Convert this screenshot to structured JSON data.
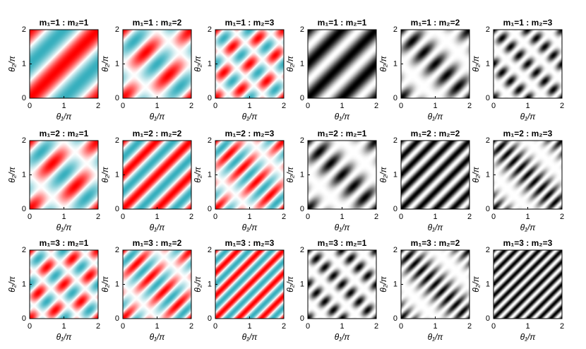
{
  "chart_data": [
    {
      "type": "heatmap",
      "title": "m₁=1 : m₂=1",
      "m1": 1,
      "m2": 1,
      "colormap": "red-cyan",
      "xlabel": "θ₁/π",
      "ylabel": "θ₂/π",
      "xlim": [
        0,
        2
      ],
      "ylim": [
        0,
        2
      ],
      "xticks": [
        0,
        1,
        2
      ],
      "yticks": [
        0,
        1,
        2
      ]
    },
    {
      "type": "heatmap",
      "title": "m₁=1 : m₂=2",
      "m1": 1,
      "m2": 2,
      "colormap": "red-cyan",
      "xlabel": "θ₁/π",
      "ylabel": "θ₂/π",
      "xlim": [
        0,
        2
      ],
      "ylim": [
        0,
        2
      ],
      "xticks": [
        0,
        1,
        2
      ],
      "yticks": [
        0,
        1,
        2
      ]
    },
    {
      "type": "heatmap",
      "title": "m₁=1 : m₂=3",
      "m1": 1,
      "m2": 3,
      "colormap": "red-cyan",
      "xlabel": "θ₁/π",
      "ylabel": "θ₂/π",
      "xlim": [
        0,
        2
      ],
      "ylim": [
        0,
        2
      ],
      "xticks": [
        0,
        1,
        2
      ],
      "yticks": [
        0,
        1,
        2
      ]
    },
    {
      "type": "heatmap",
      "title": "m₁=1 : m₂=1",
      "m1": 1,
      "m2": 1,
      "colormap": "gray",
      "xlabel": "θ₁/π",
      "ylabel": "θ₂/π",
      "xlim": [
        0,
        2
      ],
      "ylim": [
        0,
        2
      ],
      "xticks": [
        0,
        1,
        2
      ],
      "yticks": [
        0,
        1,
        2
      ]
    },
    {
      "type": "heatmap",
      "title": "m₁=1 : m₂=2",
      "m1": 1,
      "m2": 2,
      "colormap": "gray",
      "xlabel": "θ₁/π",
      "ylabel": "θ₂/π",
      "xlim": [
        0,
        2
      ],
      "ylim": [
        0,
        2
      ],
      "xticks": [
        0,
        1,
        2
      ],
      "yticks": [
        0,
        1,
        2
      ]
    },
    {
      "type": "heatmap",
      "title": "m₁=1 : m₂=3",
      "m1": 1,
      "m2": 3,
      "colormap": "gray",
      "xlabel": "θ₁/π",
      "ylabel": "θ₂/π",
      "xlim": [
        0,
        2
      ],
      "ylim": [
        0,
        2
      ],
      "xticks": [
        0,
        1,
        2
      ],
      "yticks": [
        0,
        1,
        2
      ]
    },
    {
      "type": "heatmap",
      "title": "m₁=2 : m₂=1",
      "m1": 2,
      "m2": 1,
      "colormap": "red-cyan",
      "xlabel": "θ₁/π",
      "ylabel": "θ₂/π",
      "xlim": [
        0,
        2
      ],
      "ylim": [
        0,
        2
      ],
      "xticks": [
        0,
        1,
        2
      ],
      "yticks": [
        0,
        1,
        2
      ]
    },
    {
      "type": "heatmap",
      "title": "m₁=2 : m₂=2",
      "m1": 2,
      "m2": 2,
      "colormap": "red-cyan",
      "xlabel": "θ₁/π",
      "ylabel": "θ₂/π",
      "xlim": [
        0,
        2
      ],
      "ylim": [
        0,
        2
      ],
      "xticks": [
        0,
        1,
        2
      ],
      "yticks": [
        0,
        1,
        2
      ]
    },
    {
      "type": "heatmap",
      "title": "m₁=2 : m₂=3",
      "m1": 2,
      "m2": 3,
      "colormap": "red-cyan",
      "xlabel": "θ₁/π",
      "ylabel": "θ₂/π",
      "xlim": [
        0,
        2
      ],
      "ylim": [
        0,
        2
      ],
      "xticks": [
        0,
        1,
        2
      ],
      "yticks": [
        0,
        1,
        2
      ]
    },
    {
      "type": "heatmap",
      "title": "m₁=2 : m₂=1",
      "m1": 2,
      "m2": 1,
      "colormap": "gray",
      "xlabel": "θ₁/π",
      "ylabel": "θ₂/π",
      "xlim": [
        0,
        2
      ],
      "ylim": [
        0,
        2
      ],
      "xticks": [
        0,
        1,
        2
      ],
      "yticks": [
        0,
        1,
        2
      ]
    },
    {
      "type": "heatmap",
      "title": "m₁=2 : m₂=2",
      "m1": 2,
      "m2": 2,
      "colormap": "gray",
      "xlabel": "θ₁/π",
      "ylabel": "θ₂/π",
      "xlim": [
        0,
        2
      ],
      "ylim": [
        0,
        2
      ],
      "xticks": [
        0,
        1,
        2
      ],
      "yticks": [
        0,
        1,
        2
      ]
    },
    {
      "type": "heatmap",
      "title": "m₁=2 : m₂=3",
      "m1": 2,
      "m2": 3,
      "colormap": "gray",
      "xlabel": "θ₁/π",
      "ylabel": "θ₂/π",
      "xlim": [
        0,
        2
      ],
      "ylim": [
        0,
        2
      ],
      "xticks": [
        0,
        1,
        2
      ],
      "yticks": [
        0,
        1,
        2
      ]
    },
    {
      "type": "heatmap",
      "title": "m₁=3 : m₂=1",
      "m1": 3,
      "m2": 1,
      "colormap": "red-cyan",
      "xlabel": "θ₁/π",
      "ylabel": "θ₂/π",
      "xlim": [
        0,
        2
      ],
      "ylim": [
        0,
        2
      ],
      "xticks": [
        0,
        1,
        2
      ],
      "yticks": [
        0,
        1,
        2
      ]
    },
    {
      "type": "heatmap",
      "title": "m₁=3 : m₂=2",
      "m1": 3,
      "m2": 2,
      "colormap": "red-cyan",
      "xlabel": "θ₁/π",
      "ylabel": "θ₂/π",
      "xlim": [
        0,
        2
      ],
      "ylim": [
        0,
        2
      ],
      "xticks": [
        0,
        1,
        2
      ],
      "yticks": [
        0,
        1,
        2
      ]
    },
    {
      "type": "heatmap",
      "title": "m₁=3 : m₂=3",
      "m1": 3,
      "m2": 3,
      "colormap": "red-cyan",
      "xlabel": "θ₁/π",
      "ylabel": "θ₂/π",
      "xlim": [
        0,
        2
      ],
      "ylim": [
        0,
        2
      ],
      "xticks": [
        0,
        1,
        2
      ],
      "yticks": [
        0,
        1,
        2
      ]
    },
    {
      "type": "heatmap",
      "title": "m₁=3 : m₂=1",
      "m1": 3,
      "m2": 1,
      "colormap": "gray",
      "xlabel": "θ₁/π",
      "ylabel": "θ₂/π",
      "xlim": [
        0,
        2
      ],
      "ylim": [
        0,
        2
      ],
      "xticks": [
        0,
        1,
        2
      ],
      "yticks": [
        0,
        1,
        2
      ]
    },
    {
      "type": "heatmap",
      "title": "m₁=3 : m₂=2",
      "m1": 3,
      "m2": 2,
      "colormap": "gray",
      "xlabel": "θ₁/π",
      "ylabel": "θ₂/π",
      "xlim": [
        0,
        2
      ],
      "ylim": [
        0,
        2
      ],
      "xticks": [
        0,
        1,
        2
      ],
      "yticks": [
        0,
        1,
        2
      ]
    },
    {
      "type": "heatmap",
      "title": "m₁=3 : m₂=3",
      "m1": 3,
      "m2": 3,
      "colormap": "gray",
      "xlabel": "θ₁/π",
      "ylabel": "θ₂/π",
      "xlim": [
        0,
        2
      ],
      "ylim": [
        0,
        2
      ],
      "xticks": [
        0,
        1,
        2
      ],
      "yticks": [
        0,
        1,
        2
      ]
    }
  ]
}
